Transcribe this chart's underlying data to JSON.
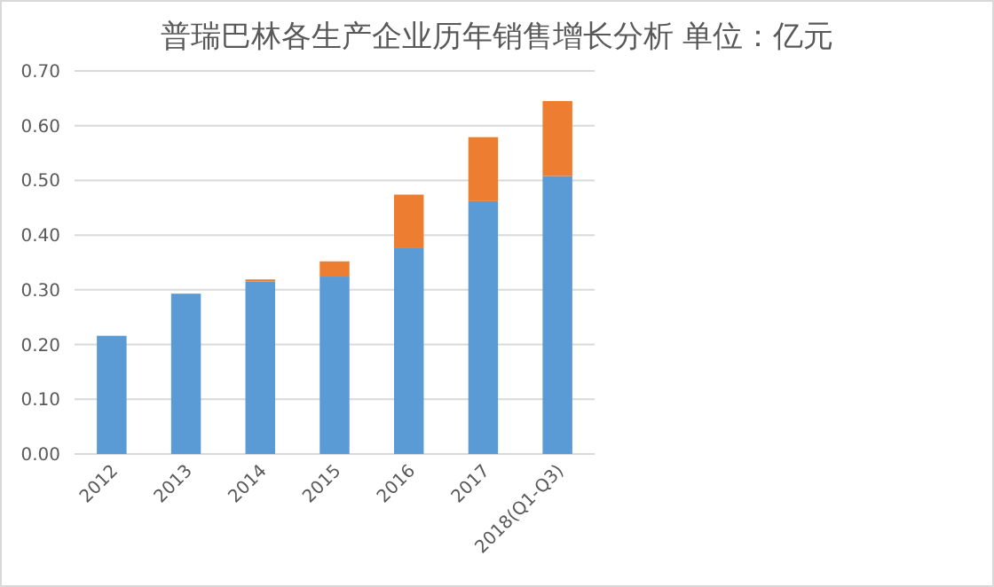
{
  "chart_data": {
    "type": "bar",
    "title": "普瑞巴林各生产企业历年销售增长分析 单位：亿元",
    "categories": [
      "2012",
      "2013",
      "2014",
      "2015",
      "2016",
      "2017",
      "2018(Q1-Q3)"
    ],
    "stacked": true,
    "series": [
      {
        "color": "#5b9bd5",
        "values": [
          0.216,
          0.293,
          0.315,
          0.324,
          0.376,
          0.462,
          0.508
        ]
      },
      {
        "color": "#ed7d31",
        "values": [
          null,
          null,
          0.004,
          0.028,
          0.098,
          0.117,
          0.137
        ]
      }
    ],
    "ylim": [
      0,
      0.7
    ],
    "yticks": [
      {
        "value": 0,
        "label": "0.00"
      },
      {
        "value": 0.1,
        "label": "0.10"
      },
      {
        "value": 0.2,
        "label": "0.20"
      },
      {
        "value": 0.3,
        "label": "0.30"
      },
      {
        "value": 0.4,
        "label": "0.40"
      },
      {
        "value": 0.5,
        "label": "0.50"
      },
      {
        "value": 0.6,
        "label": "0.60"
      },
      {
        "value": 0.7,
        "label": "0.70"
      }
    ],
    "grid": "y"
  }
}
